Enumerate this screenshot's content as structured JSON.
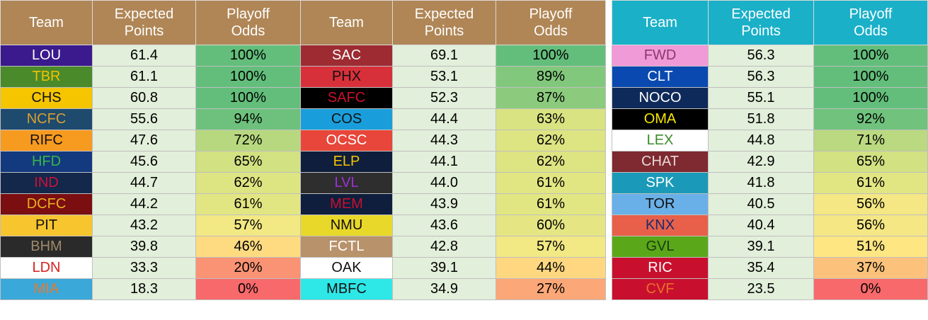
{
  "tables": [
    {
      "header_color": "#b08656",
      "columns": [
        "Team",
        "Expected\nPoints",
        "Playoff\nOdds",
        "Team",
        "Expected\nPoints",
        "Playoff\nOdds"
      ],
      "rows": [
        [
          {
            "team": "LOU",
            "bg": "#3a1a8c",
            "fg": "#ffffff"
          },
          "61.4",
          "100%",
          {
            "team": "SAC",
            "bg": "#9e2b32",
            "fg": "#ffffff"
          },
          "69.1",
          "100%"
        ],
        [
          {
            "team": "TBR",
            "bg": "#4a8a2a",
            "fg": "#f2c200"
          },
          "61.1",
          "100%",
          {
            "team": "PHX",
            "bg": "#d8303a",
            "fg": "#111111"
          },
          "53.1",
          "89%"
        ],
        [
          {
            "team": "CHS",
            "bg": "#f5c500",
            "fg": "#111111"
          },
          "60.8",
          "100%",
          {
            "team": "SAFC",
            "bg": "#000000",
            "fg": "#c8102e"
          },
          "52.3",
          "87%"
        ],
        [
          {
            "team": "NCFC",
            "bg": "#1e4a6e",
            "fg": "#d8a030"
          },
          "55.6",
          "94%",
          {
            "team": "COS",
            "bg": "#1a9edb",
            "fg": "#111111"
          },
          "44.4",
          "63%"
        ],
        [
          {
            "team": "RIFC",
            "bg": "#f79a20",
            "fg": "#111111"
          },
          "47.6",
          "72%",
          {
            "team": "OCSC",
            "bg": "#e8463a",
            "fg": "#ffffff"
          },
          "44.3",
          "62%"
        ],
        [
          {
            "team": "HFD",
            "bg": "#133a7e",
            "fg": "#3ab54a"
          },
          "45.6",
          "65%",
          {
            "team": "ELP",
            "bg": "#0e1e3c",
            "fg": "#f5c500"
          },
          "44.1",
          "62%"
        ],
        [
          {
            "team": "IND",
            "bg": "#13284a",
            "fg": "#d0103a"
          },
          "44.7",
          "62%",
          {
            "team": "LVL",
            "bg": "#2e2e2e",
            "fg": "#a030d8"
          },
          "44.0",
          "61%"
        ],
        [
          {
            "team": "DCFC",
            "bg": "#7a0e10",
            "fg": "#e8b020"
          },
          "44.2",
          "61%",
          {
            "team": "MEM",
            "bg": "#0e1e3c",
            "fg": "#c8102e"
          },
          "43.9",
          "61%"
        ],
        [
          {
            "team": "PIT",
            "bg": "#f7c52e",
            "fg": "#111111"
          },
          "43.2",
          "57%",
          {
            "team": "NMU",
            "bg": "#e8d82a",
            "fg": "#111111"
          },
          "43.6",
          "60%"
        ],
        [
          {
            "team": "BHM",
            "bg": "#2a2a2a",
            "fg": "#a08a6a"
          },
          "39.8",
          "46%",
          {
            "team": "FCTL",
            "bg": "#b8926a",
            "fg": "#ffffff"
          },
          "42.8",
          "57%"
        ],
        [
          {
            "team": "LDN",
            "bg": "#ffffff",
            "fg": "#d82020"
          },
          "33.3",
          "20%",
          {
            "team": "OAK",
            "bg": "#ffffff",
            "fg": "#111111"
          },
          "39.1",
          "44%"
        ],
        [
          {
            "team": "MIA",
            "bg": "#3aa8d8",
            "fg": "#e87a30"
          },
          "18.3",
          "0%",
          {
            "team": "MBFC",
            "bg": "#2ee8e8",
            "fg": "#111111"
          },
          "34.9",
          "27%"
        ]
      ]
    },
    {
      "header_color": "#1ab0c8",
      "columns": [
        "Team",
        "Expected\nPoints",
        "Playoff\nOdds"
      ],
      "rows": [
        [
          {
            "team": "FWD",
            "bg": "#f09ad8",
            "fg": "#8a3a6a"
          },
          "56.3",
          "100%"
        ],
        [
          {
            "team": "CLT",
            "bg": "#0a4ab0",
            "fg": "#ffffff"
          },
          "56.3",
          "100%"
        ],
        [
          {
            "team": "NOCO",
            "bg": "#0e2a5a",
            "fg": "#ffffff"
          },
          "55.1",
          "100%"
        ],
        [
          {
            "team": "OMA",
            "bg": "#000000",
            "fg": "#f5e600"
          },
          "51.8",
          "92%"
        ],
        [
          {
            "team": "LEX",
            "bg": "#ffffff",
            "fg": "#3a8a2a"
          },
          "44.8",
          "71%"
        ],
        [
          {
            "team": "CHAT",
            "bg": "#7e2a30",
            "fg": "#e8d8d8"
          },
          "42.9",
          "65%"
        ],
        [
          {
            "team": "SPK",
            "bg": "#1a9ab8",
            "fg": "#ffffff"
          },
          "41.8",
          "61%"
        ],
        [
          {
            "team": "TOR",
            "bg": "#6ab0e8",
            "fg": "#111111"
          },
          "40.5",
          "56%"
        ],
        [
          {
            "team": "KNX",
            "bg": "#e8604a",
            "fg": "#1e2a6a"
          },
          "40.4",
          "56%"
        ],
        [
          {
            "team": "GVL",
            "bg": "#5aa81a",
            "fg": "#1e3a0e"
          },
          "39.1",
          "51%"
        ],
        [
          {
            "team": "RIC",
            "bg": "#c8102e",
            "fg": "#ffffff"
          },
          "35.4",
          "37%"
        ],
        [
          {
            "team": "CVF",
            "bg": "#c8102e",
            "fg": "#e8702a"
          },
          "23.5",
          "0%"
        ]
      ]
    }
  ],
  "odds_colors": {
    "100%": "#63be7b",
    "94%": "#6ec17c",
    "92%": "#70c27c",
    "89%": "#82c87c",
    "87%": "#8ccb7d",
    "72%": "#b7d87f",
    "71%": "#bad980",
    "65%": "#d2e181",
    "63%": "#d9e381",
    "62%": "#dde482",
    "61%": "#e2e682",
    "60%": "#e5e683",
    "57%": "#f2e884",
    "56%": "#f4e784",
    "51%": "#fee683",
    "46%": "#fedb80",
    "44%": "#fed780",
    "37%": "#fcc27b",
    "27%": "#fca777",
    "20%": "#fa9373",
    "0%": "#f8696b"
  }
}
